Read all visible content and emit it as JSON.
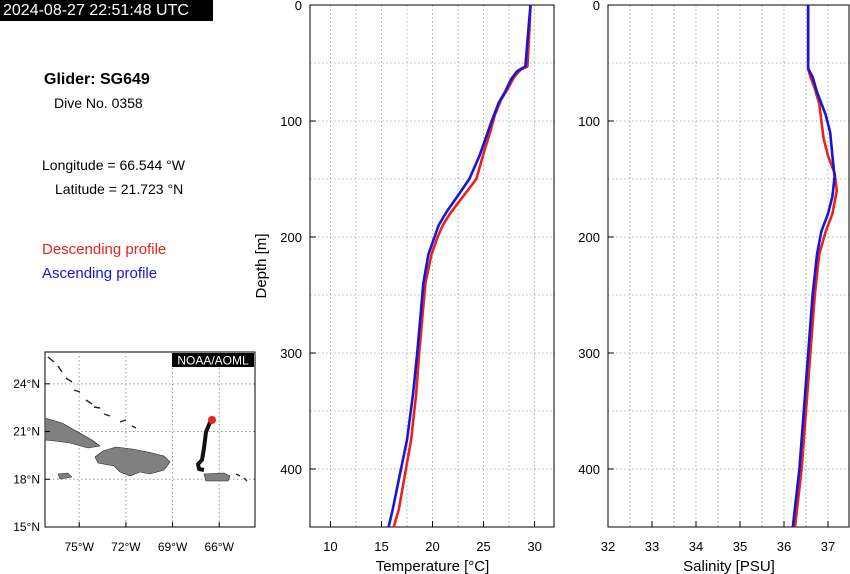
{
  "header": {
    "timestamp": "2024-08-27 22:51:48 UTC",
    "glider": "Glider: SG649",
    "dive": "Dive No. 0358",
    "longitude": "Longitude = 66.544 °W",
    "latitude": "Latitude = 21.723 °N"
  },
  "legend": {
    "descending": {
      "label": "Descending profile",
      "color": "#e8231e"
    },
    "ascending": {
      "label": "Ascending profile",
      "color": "#1616d8"
    }
  },
  "chart_data": [
    {
      "type": "line",
      "xlabel": "Temperature [°C]",
      "ylabel": "Depth [m]",
      "xlim": [
        8,
        32
      ],
      "ylim": [
        450,
        0
      ],
      "xticks": [
        10,
        15,
        20,
        25,
        30
      ],
      "yticks": [
        0,
        100,
        200,
        300,
        400
      ],
      "grid": true,
      "series": [
        {
          "name": "Descending profile",
          "color": "#e8231e",
          "points": [
            [
              29.6,
              0
            ],
            [
              29.5,
              20
            ],
            [
              29.3,
              53
            ],
            [
              28.6,
              56
            ],
            [
              28.0,
              62
            ],
            [
              27.4,
              72
            ],
            [
              26.7,
              82
            ],
            [
              26.1,
              95
            ],
            [
              25.7,
              108
            ],
            [
              25.0,
              128
            ],
            [
              24.3,
              150
            ],
            [
              23.0,
              165
            ],
            [
              21.7,
              180
            ],
            [
              21.0,
              190
            ],
            [
              20.5,
              200
            ],
            [
              19.9,
              215
            ],
            [
              19.3,
              240
            ],
            [
              19.0,
              270
            ],
            [
              18.7,
              300
            ],
            [
              18.4,
              335
            ],
            [
              17.9,
              375
            ],
            [
              17.3,
              405
            ],
            [
              16.7,
              435
            ],
            [
              16.2,
              450
            ]
          ]
        },
        {
          "name": "Ascending profile",
          "color": "#1616d8",
          "points": [
            [
              29.6,
              0
            ],
            [
              29.4,
              20
            ],
            [
              29.1,
              53
            ],
            [
              28.3,
              57
            ],
            [
              27.7,
              64
            ],
            [
              27.1,
              75
            ],
            [
              26.5,
              84
            ],
            [
              25.8,
              100
            ],
            [
              25.2,
              115
            ],
            [
              24.6,
              130
            ],
            [
              23.6,
              150
            ],
            [
              22.6,
              163
            ],
            [
              21.4,
              178
            ],
            [
              20.6,
              190
            ],
            [
              20.2,
              200
            ],
            [
              19.6,
              215
            ],
            [
              19.1,
              240
            ],
            [
              18.8,
              270
            ],
            [
              18.5,
              300
            ],
            [
              18.1,
              335
            ],
            [
              17.5,
              375
            ],
            [
              16.8,
              405
            ],
            [
              16.1,
              435
            ],
            [
              15.7,
              450
            ]
          ]
        }
      ]
    },
    {
      "type": "line",
      "xlabel": "Salinity [PSU]",
      "ylabel": "",
      "xlim": [
        32,
        37.5
      ],
      "ylim": [
        450,
        0
      ],
      "xticks": [
        32,
        33,
        34,
        35,
        36,
        37
      ],
      "yticks": [
        0,
        100,
        200,
        300,
        400
      ],
      "grid": true,
      "series": [
        {
          "name": "Descending profile",
          "color": "#e8231e",
          "points": [
            [
              36.55,
              0
            ],
            [
              36.55,
              30
            ],
            [
              36.55,
              55
            ],
            [
              36.6,
              62
            ],
            [
              36.7,
              72
            ],
            [
              36.8,
              85
            ],
            [
              36.85,
              100
            ],
            [
              36.9,
              115
            ],
            [
              37.0,
              130
            ],
            [
              37.15,
              145
            ],
            [
              37.2,
              160
            ],
            [
              37.1,
              180
            ],
            [
              36.95,
              195
            ],
            [
              36.8,
              215
            ],
            [
              36.7,
              250
            ],
            [
              36.6,
              300
            ],
            [
              36.5,
              350
            ],
            [
              36.4,
              400
            ],
            [
              36.25,
              450
            ]
          ]
        },
        {
          "name": "Ascending profile",
          "color": "#1616d8",
          "points": [
            [
              36.55,
              0
            ],
            [
              36.55,
              30
            ],
            [
              36.55,
              55
            ],
            [
              36.65,
              62
            ],
            [
              36.75,
              75
            ],
            [
              36.85,
              85
            ],
            [
              36.95,
              95
            ],
            [
              37.05,
              110
            ],
            [
              37.1,
              130
            ],
            [
              37.15,
              148
            ],
            [
              37.1,
              165
            ],
            [
              37.0,
              180
            ],
            [
              36.85,
              195
            ],
            [
              36.75,
              215
            ],
            [
              36.65,
              250
            ],
            [
              36.55,
              300
            ],
            [
              36.45,
              350
            ],
            [
              36.35,
              400
            ],
            [
              36.2,
              450
            ]
          ]
        }
      ]
    }
  ],
  "map": {
    "credit": "NOAA/AOML",
    "lat_labels": [
      "24°N",
      "21°N",
      "18°N",
      "15°N"
    ],
    "lon_labels": [
      "75°W",
      "72°W",
      "69°W",
      "66°W"
    ],
    "land_color": "#808080",
    "track_color": "#111111",
    "position_color": "#e8231e"
  }
}
